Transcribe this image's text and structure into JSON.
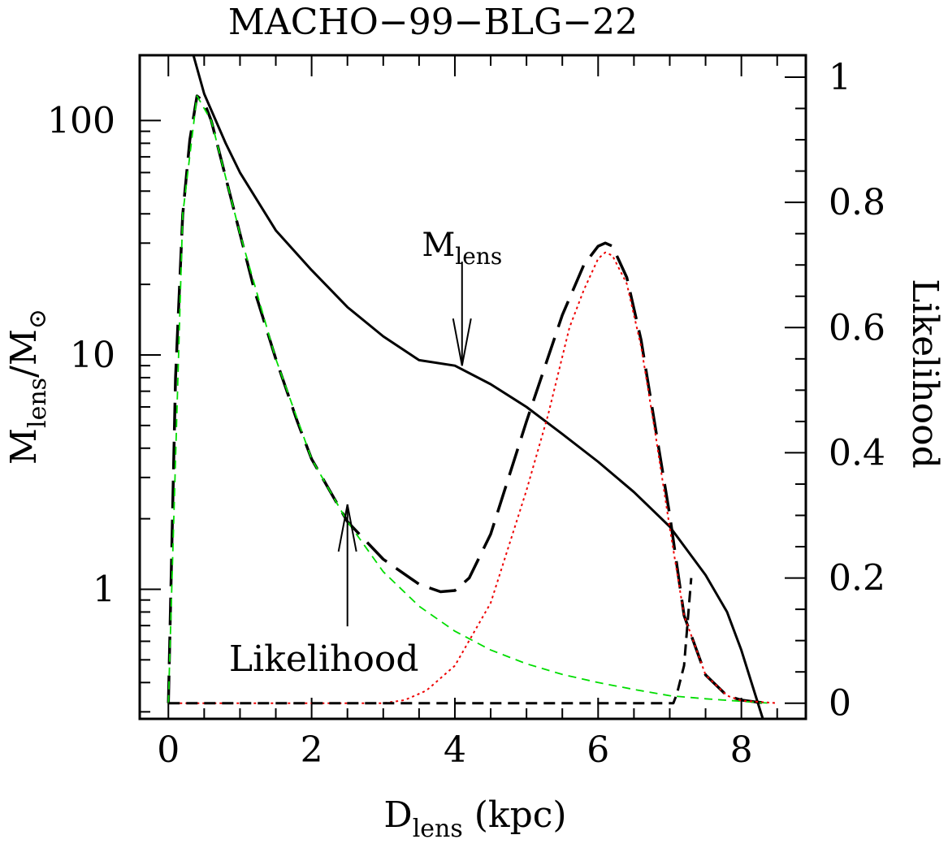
{
  "chart_data": {
    "type": "line",
    "title": "MACHO−99−BLG−22",
    "xlabel": {
      "main": "D",
      "sub": "lens",
      "rest": " (kpc)"
    },
    "ylabel_left": {
      "main": "M",
      "sub": "lens",
      "sep": "/M",
      "sun": "⊙"
    },
    "ylabel_right": "Likelihood",
    "xlim": [
      -0.4,
      8.9
    ],
    "ylim_left": [
      0.28,
      190
    ],
    "yscale_left": "log",
    "ylim_right": [
      -0.025,
      1.035
    ],
    "x_ticks": [
      0,
      2,
      4,
      6,
      8
    ],
    "x_tick_labels": [
      "0",
      "2",
      "4",
      "6",
      "8"
    ],
    "y_left_ticks": [
      1,
      10,
      100
    ],
    "y_left_tick_labels": [
      "1",
      "10",
      "100"
    ],
    "y_right_ticks": [
      0,
      0.2,
      0.4,
      0.6,
      0.8,
      1
    ],
    "y_right_tick_labels": [
      "0",
      "0.2",
      "0.4",
      "0.6",
      "0.8",
      "1"
    ],
    "annotations": [
      {
        "text": "M",
        "sub": "lens",
        "arrow_to": {
          "x": 4.1,
          "y": 9.0
        }
      },
      {
        "text": "Likelihood",
        "arrow_to": {
          "x": 2.5,
          "y": 2.3
        }
      }
    ],
    "series": [
      {
        "style": "solid",
        "color": "#000000",
        "axis": "left",
        "x": [
          0.35,
          0.5,
          0.8,
          1.0,
          1.5,
          2.0,
          2.5,
          3.0,
          3.5,
          4.0,
          4.5,
          5.0,
          5.5,
          6.0,
          6.5,
          7.0,
          7.5,
          7.8,
          8.0,
          8.2,
          8.3
        ],
        "y": [
          190,
          130,
          80,
          60,
          34,
          23,
          16,
          12,
          9.5,
          9.0,
          7.5,
          6.0,
          4.6,
          3.5,
          2.6,
          1.85,
          1.15,
          0.8,
          0.55,
          0.35,
          0.28
        ]
      },
      {
        "style": "long-dash",
        "color": "#000000",
        "axis": "right",
        "x": [
          0,
          0.1,
          0.2,
          0.3,
          0.4,
          0.5,
          0.6,
          0.8,
          1.0,
          1.2,
          1.5,
          1.8,
          2.0,
          2.5,
          3.0,
          3.5,
          3.8,
          4.0,
          4.2,
          4.5,
          5.0,
          5.5,
          5.8,
          6.0,
          6.1,
          6.2,
          6.4,
          6.6,
          6.8,
          7.0,
          7.2,
          7.5,
          7.8,
          8.0,
          8.2,
          8.4
        ],
        "y": [
          0,
          0.52,
          0.78,
          0.9,
          0.97,
          0.96,
          0.93,
          0.84,
          0.75,
          0.66,
          0.55,
          0.45,
          0.39,
          0.29,
          0.23,
          0.19,
          0.178,
          0.18,
          0.2,
          0.27,
          0.45,
          0.62,
          0.7,
          0.73,
          0.735,
          0.73,
          0.68,
          0.58,
          0.44,
          0.3,
          0.14,
          0.045,
          0.012,
          0.005,
          0.002,
          0
        ]
      },
      {
        "style": "dashed",
        "color": "#00dd00",
        "axis": "right",
        "x": [
          0,
          0.2,
          0.4,
          0.6,
          0.8,
          1.0,
          1.5,
          2.0,
          2.5,
          3.0,
          3.5,
          4.0,
          4.5,
          5.0,
          5.5,
          6.0,
          6.5,
          7.0,
          7.5,
          8.0,
          8.4
        ],
        "y": [
          0,
          0.78,
          0.97,
          0.93,
          0.84,
          0.75,
          0.55,
          0.39,
          0.29,
          0.21,
          0.155,
          0.115,
          0.085,
          0.063,
          0.046,
          0.033,
          0.022,
          0.012,
          0.007,
          0.003,
          0
        ]
      },
      {
        "style": "dotted",
        "color": "#ee0000",
        "axis": "right",
        "x": [
          0,
          3.0,
          3.3,
          3.6,
          4.0,
          4.5,
          5.0,
          5.3,
          5.6,
          5.8,
          6.0,
          6.1,
          6.2,
          6.4,
          6.6,
          6.8,
          7.0,
          7.2,
          7.5,
          7.8,
          8.0,
          8.5
        ],
        "y": [
          0,
          0,
          0.005,
          0.02,
          0.06,
          0.16,
          0.34,
          0.46,
          0.6,
          0.66,
          0.71,
          0.72,
          0.715,
          0.67,
          0.57,
          0.43,
          0.28,
          0.14,
          0.045,
          0.012,
          0.004,
          0
        ]
      },
      {
        "style": "short-dash",
        "color": "#000000",
        "axis": "right",
        "x": [
          0,
          7.05,
          7.1,
          7.2,
          7.3
        ],
        "y": [
          0,
          0,
          0.015,
          0.06,
          0.2
        ]
      }
    ]
  }
}
